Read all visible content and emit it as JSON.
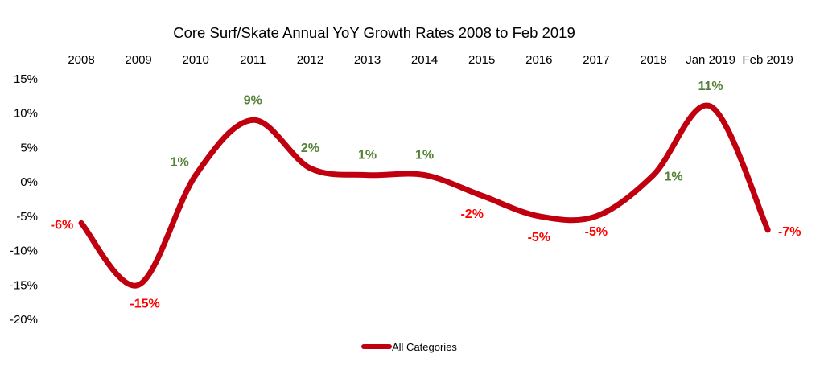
{
  "chart_data": {
    "type": "line",
    "title": "Core Surf/Skate Annual YoY Growth Rates 2008 to Feb 2019",
    "categories": [
      "2008",
      "2009",
      "2010",
      "2011",
      "2012",
      "2013",
      "2014",
      "2015",
      "2016",
      "2017",
      "2018",
      "Jan 2019",
      "Feb 2019"
    ],
    "series": [
      {
        "name": "All Categories",
        "color": "#c0000f",
        "values": [
          -6,
          -15,
          1,
          9,
          2,
          1,
          1,
          -2,
          -5,
          -5,
          1,
          11,
          -7
        ]
      }
    ],
    "data_labels": [
      "-6%",
      "-15%",
      "1%",
      "9%",
      "2%",
      "1%",
      "1%",
      "-2%",
      "-5%",
      "-5%",
      "1%",
      "11%",
      "-7%"
    ],
    "y_ticks": [
      "15%",
      "10%",
      "5%",
      "0%",
      "-5%",
      "-10%",
      "-15%",
      "-20%"
    ],
    "ylim": [
      -20,
      15
    ],
    "x_axis_position": "top",
    "grid": false,
    "legend_position": "bottom-center",
    "positive_label_color": "#548235",
    "negative_label_color": "#ff0000"
  }
}
